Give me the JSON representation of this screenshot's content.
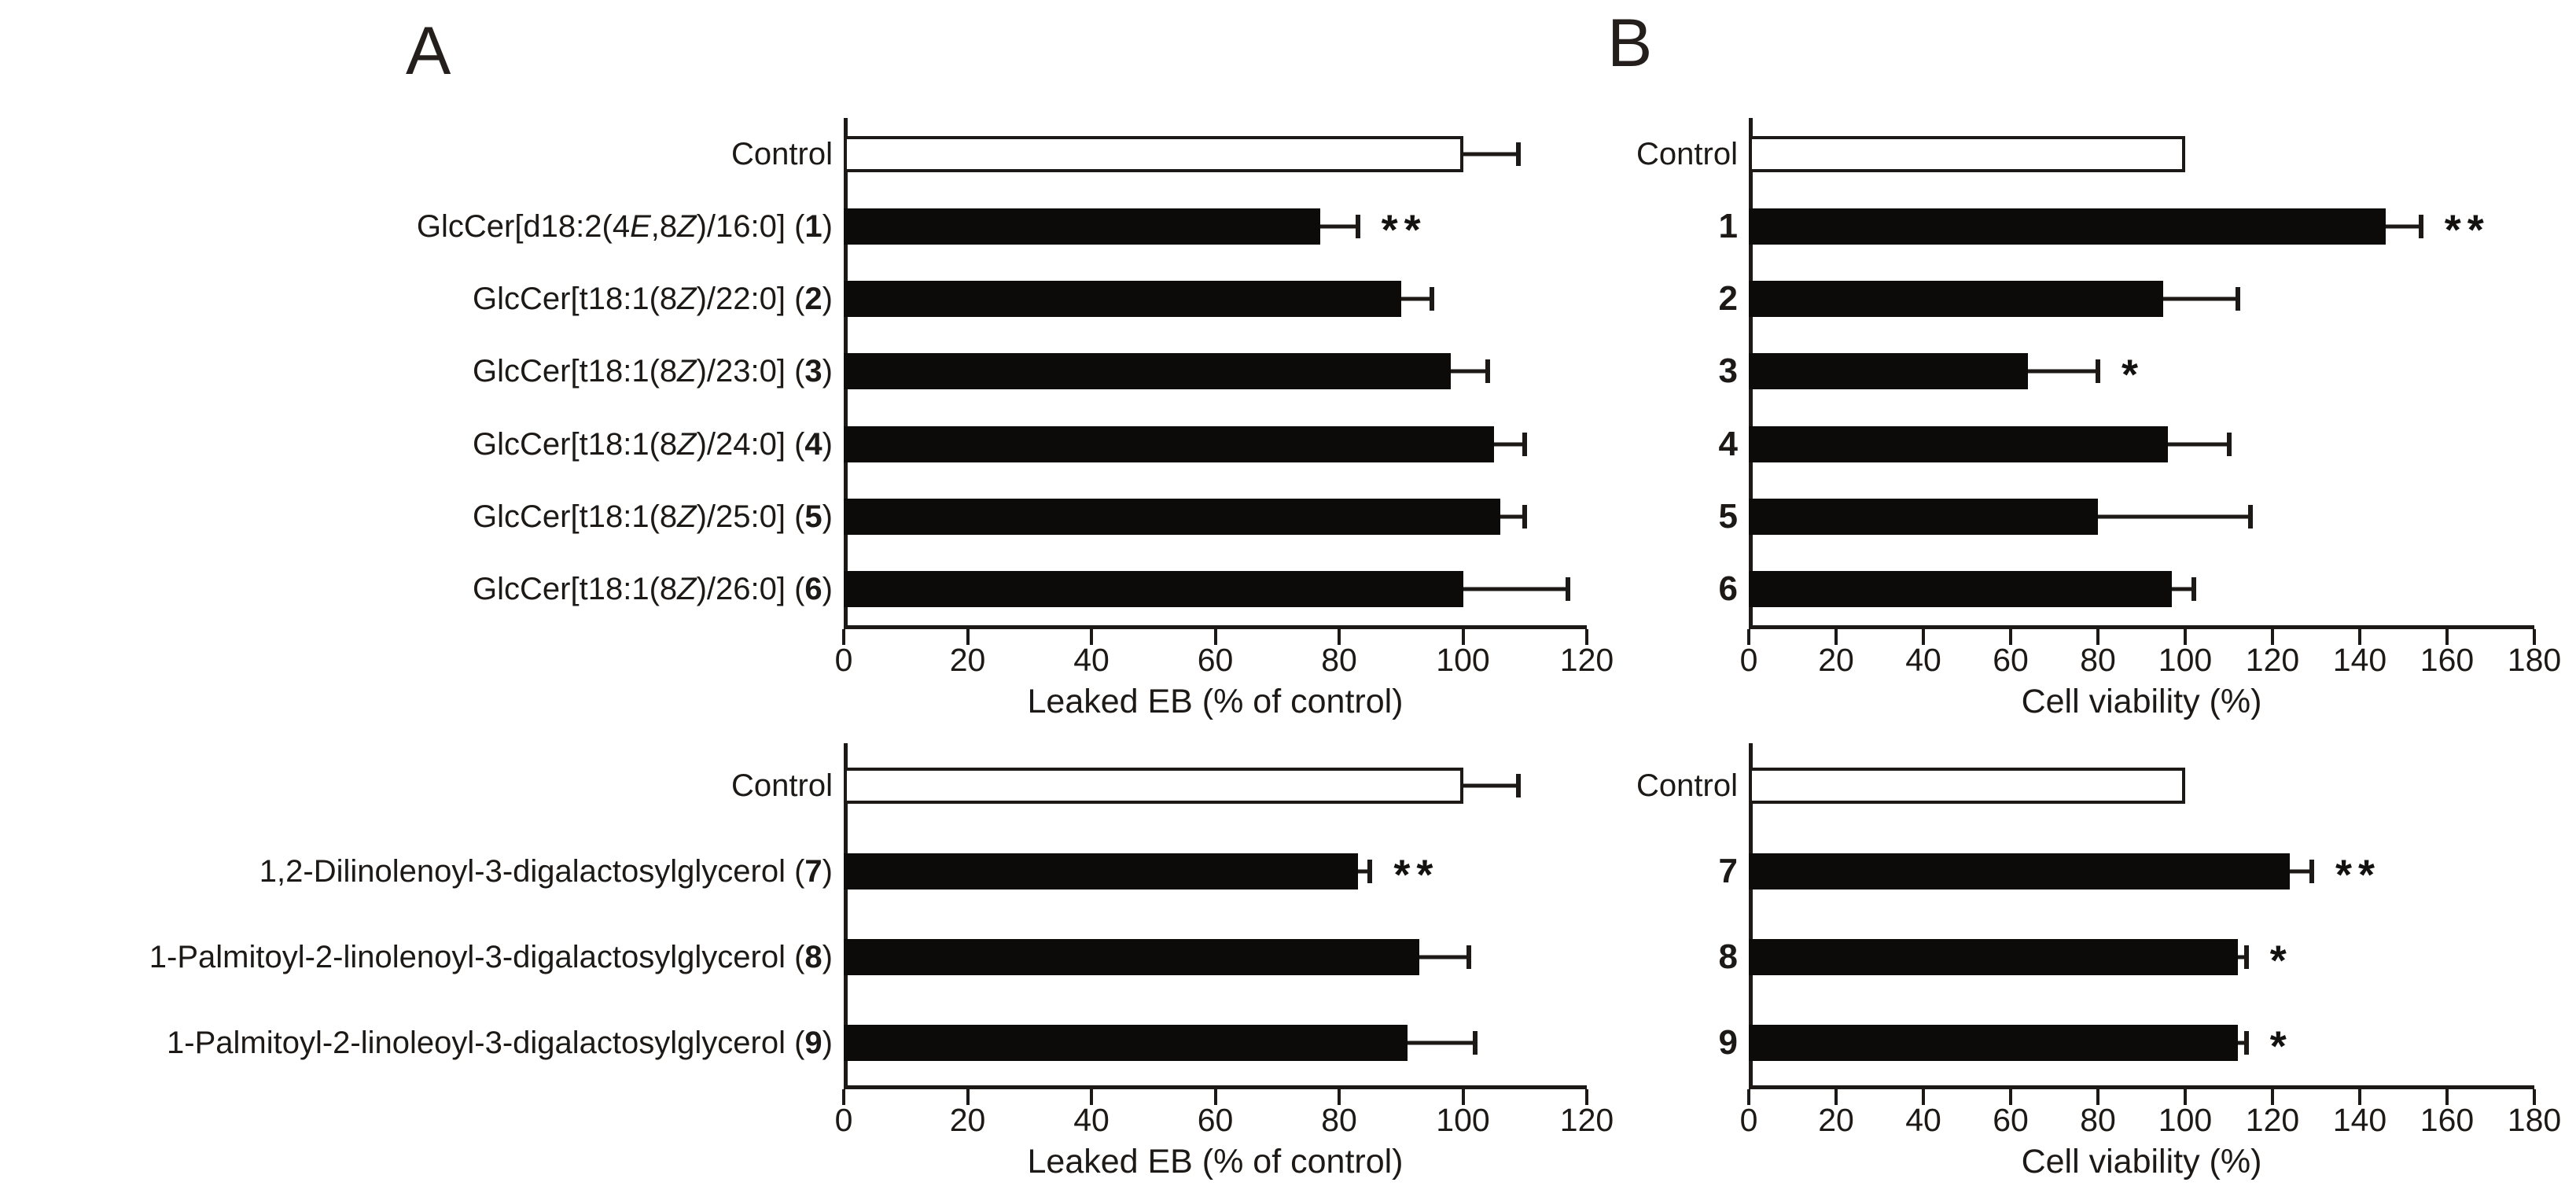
{
  "panels": {
    "a": "A",
    "b": "B"
  },
  "colors": {
    "bar_fill": "#0d0b09",
    "control_fill": "#ffffff",
    "axis": "#1c1916",
    "text": "#1c1916"
  },
  "chart_data": [
    {
      "type": "bar",
      "orientation": "horizontal",
      "panel": "A",
      "position": "top",
      "xlabel": "Leaked EB (% of control)",
      "xlim": [
        0,
        120
      ],
      "xticks": [
        0,
        20,
        40,
        60,
        80,
        100,
        120
      ],
      "grid": false,
      "rows": [
        {
          "label": [
            {
              "t": "Control"
            }
          ],
          "value": 100,
          "error": 9,
          "sig": "",
          "control": true
        },
        {
          "label": [
            {
              "t": "GlcCer[d18:2(4"
            },
            {
              "t": "E",
              "i": 1
            },
            {
              "t": ",8"
            },
            {
              "t": "Z",
              "i": 1
            },
            {
              "t": ")/16:0] ("
            },
            {
              "t": "1",
              "b": 1
            },
            {
              "t": ")"
            }
          ],
          "value": 77,
          "error": 6,
          "sig": "**",
          "control": false
        },
        {
          "label": [
            {
              "t": "GlcCer[t18:1(8"
            },
            {
              "t": "Z",
              "i": 1
            },
            {
              "t": ")/22:0] ("
            },
            {
              "t": "2",
              "b": 1
            },
            {
              "t": ")"
            }
          ],
          "value": 90,
          "error": 5,
          "sig": "",
          "control": false
        },
        {
          "label": [
            {
              "t": "GlcCer[t18:1(8"
            },
            {
              "t": "Z",
              "i": 1
            },
            {
              "t": ")/23:0] ("
            },
            {
              "t": "3",
              "b": 1
            },
            {
              "t": ")"
            }
          ],
          "value": 98,
          "error": 6,
          "sig": "",
          "control": false
        },
        {
          "label": [
            {
              "t": "GlcCer[t18:1(8"
            },
            {
              "t": "Z",
              "i": 1
            },
            {
              "t": ")/24:0] ("
            },
            {
              "t": "4",
              "b": 1
            },
            {
              "t": ")"
            }
          ],
          "value": 105,
          "error": 5,
          "sig": "",
          "control": false
        },
        {
          "label": [
            {
              "t": "GlcCer[t18:1(8"
            },
            {
              "t": "Z",
              "i": 1
            },
            {
              "t": ")/25:0] ("
            },
            {
              "t": "5",
              "b": 1
            },
            {
              "t": ")"
            }
          ],
          "value": 106,
          "error": 4,
          "sig": "",
          "control": false
        },
        {
          "label": [
            {
              "t": "GlcCer[t18:1(8"
            },
            {
              "t": "Z",
              "i": 1
            },
            {
              "t": ")/26:0] ("
            },
            {
              "t": "6",
              "b": 1
            },
            {
              "t": ")"
            }
          ],
          "value": 100,
          "error": 17,
          "sig": "",
          "control": false
        }
      ]
    },
    {
      "type": "bar",
      "orientation": "horizontal",
      "panel": "B",
      "position": "top",
      "xlabel": "Cell viability (%)",
      "xlim": [
        0,
        180
      ],
      "xticks": [
        0,
        20,
        40,
        60,
        80,
        100,
        120,
        140,
        160,
        180
      ],
      "grid": false,
      "rows": [
        {
          "label": [
            {
              "t": "Control"
            }
          ],
          "value": 100,
          "error": 0,
          "sig": "",
          "control": true
        },
        {
          "label": [
            {
              "t": "1",
              "b": 1
            }
          ],
          "value": 146,
          "error": 8,
          "sig": "**",
          "control": false
        },
        {
          "label": [
            {
              "t": "2",
              "b": 1
            }
          ],
          "value": 95,
          "error": 17,
          "sig": "",
          "control": false
        },
        {
          "label": [
            {
              "t": "3",
              "b": 1
            }
          ],
          "value": 64,
          "error": 16,
          "sig": "*",
          "control": false
        },
        {
          "label": [
            {
              "t": "4",
              "b": 1
            }
          ],
          "value": 96,
          "error": 14,
          "sig": "",
          "control": false
        },
        {
          "label": [
            {
              "t": "5",
              "b": 1
            }
          ],
          "value": 80,
          "error": 35,
          "sig": "",
          "control": false
        },
        {
          "label": [
            {
              "t": "6",
              "b": 1
            }
          ],
          "value": 97,
          "error": 5,
          "sig": "",
          "control": false
        }
      ]
    },
    {
      "type": "bar",
      "orientation": "horizontal",
      "panel": "A",
      "position": "bottom",
      "xlabel": "Leaked EB (% of control)",
      "xlim": [
        0,
        120
      ],
      "xticks": [
        0,
        20,
        40,
        60,
        80,
        100,
        120
      ],
      "grid": false,
      "rows": [
        {
          "label": [
            {
              "t": "Control"
            }
          ],
          "value": 100,
          "error": 9,
          "sig": "",
          "control": true
        },
        {
          "label": [
            {
              "t": "1,2-Dilinolenoyl-3-digalactosylglycerol ("
            },
            {
              "t": "7",
              "b": 1
            },
            {
              "t": ")"
            }
          ],
          "value": 83,
          "error": 2,
          "sig": "**",
          "control": false
        },
        {
          "label": [
            {
              "t": "1-Palmitoyl-2-linolenoyl-3-digalactosylglycerol ("
            },
            {
              "t": "8",
              "b": 1
            },
            {
              "t": ")"
            }
          ],
          "value": 93,
          "error": 8,
          "sig": "",
          "control": false
        },
        {
          "label": [
            {
              "t": "1-Palmitoyl-2-linoleoyl-3-digalactosylglycerol ("
            },
            {
              "t": "9",
              "b": 1
            },
            {
              "t": ")"
            }
          ],
          "value": 91,
          "error": 11,
          "sig": "",
          "control": false
        }
      ]
    },
    {
      "type": "bar",
      "orientation": "horizontal",
      "panel": "B",
      "position": "bottom",
      "xlabel": "Cell viability (%)",
      "xlim": [
        0,
        180
      ],
      "xticks": [
        0,
        20,
        40,
        60,
        80,
        100,
        120,
        140,
        160,
        180
      ],
      "grid": false,
      "rows": [
        {
          "label": [
            {
              "t": "Control"
            }
          ],
          "value": 100,
          "error": 0,
          "sig": "",
          "control": true
        },
        {
          "label": [
            {
              "t": "7",
              "b": 1
            }
          ],
          "value": 124,
          "error": 5,
          "sig": "**",
          "control": false
        },
        {
          "label": [
            {
              "t": "8",
              "b": 1
            }
          ],
          "value": 112,
          "error": 2,
          "sig": "*",
          "control": false
        },
        {
          "label": [
            {
              "t": "9",
              "b": 1
            }
          ],
          "value": 112,
          "error": 2,
          "sig": "*",
          "control": false
        }
      ]
    }
  ]
}
